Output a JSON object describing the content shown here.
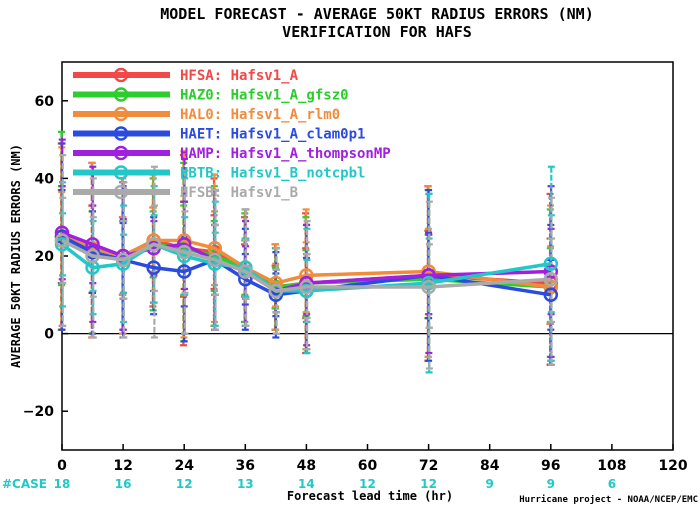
{
  "chart_data": {
    "type": "line",
    "title": "MODEL FORECAST - AVERAGE 50KT RADIUS ERRORS (NM)",
    "subtitle": "VERIFICATION FOR HAFS",
    "xlabel": "Forecast lead time (hr)",
    "ylabel": "AVERAGE 50KT RADIUS ERRORS (NM)",
    "xlim": [
      0,
      120
    ],
    "ylim": [
      -30,
      70
    ],
    "x_ticks": [
      0,
      12,
      24,
      36,
      48,
      60,
      72,
      84,
      96,
      108,
      120
    ],
    "y_ticks": [
      -20,
      0,
      20,
      40,
      60
    ],
    "legend_position": "top-left",
    "case_label": "#CASE",
    "case_counts": [
      {
        "x": 0,
        "n": "18"
      },
      {
        "x": 12,
        "n": "16"
      },
      {
        "x": 24,
        "n": "12"
      },
      {
        "x": 36,
        "n": "13"
      },
      {
        "x": 48,
        "n": "14"
      },
      {
        "x": 60,
        "n": "12"
      },
      {
        "x": 72,
        "n": "12"
      },
      {
        "x": 84,
        "n": "9"
      },
      {
        "x": 96,
        "n": "9"
      },
      {
        "x": 108,
        "n": "6"
      }
    ],
    "credit": "Hurricane project - NOAA/NCEP/EMC",
    "x": [
      0,
      6,
      12,
      18,
      24,
      30,
      36,
      42,
      48,
      72,
      96
    ],
    "series": [
      {
        "name": "HFSA:  Hafsv1_A",
        "color": "#f24848",
        "values": [
          25,
          22,
          20,
          24,
          22,
          21,
          16,
          12,
          13,
          15,
          13
        ],
        "err_low": [
          1,
          -1,
          0,
          7,
          -3,
          2,
          3,
          1,
          -5,
          -7,
          -8
        ],
        "err_high": [
          49,
          44,
          40,
          41,
          46,
          40,
          30,
          23,
          31,
          38,
          36
        ]
      },
      {
        "name": "HAZ0:  Hafsv1_A_gfsz0",
        "color": "#2ccd2c",
        "values": [
          24,
          21,
          19,
          23,
          22,
          20,
          17,
          12,
          13,
          14,
          12
        ],
        "err_low": [
          1,
          0,
          1,
          6,
          -2,
          2,
          3,
          1,
          -4,
          -6,
          -6
        ],
        "err_high": [
          52,
          42,
          39,
          40,
          44,
          38,
          31,
          22,
          30,
          37,
          32
        ]
      },
      {
        "name": "HAL0:  Hafsv1_A_rlm0",
        "color": "#f08c3c",
        "values": [
          25,
          22,
          20,
          24,
          24,
          22,
          17,
          13,
          15,
          16,
          12
        ],
        "err_low": [
          1,
          -1,
          0,
          8,
          -1,
          3,
          2,
          1,
          -4,
          -6,
          -7
        ],
        "err_high": [
          48,
          44,
          40,
          41,
          47,
          41,
          32,
          23,
          32,
          38,
          33
        ]
      },
      {
        "name": "HAET:  Hafsv1_A_clam0p1",
        "color": "#2b4be0",
        "values": [
          25,
          21,
          19,
          17,
          16,
          19,
          14,
          10,
          11,
          15,
          10
        ],
        "err_low": [
          1,
          0,
          -1,
          5,
          -2,
          1,
          1,
          -1,
          -5,
          -7,
          -8
        ],
        "err_high": [
          49,
          42,
          38,
          30,
          34,
          37,
          27,
          21,
          28,
          37,
          28
        ]
      },
      {
        "name": "HAMP:  Hafsv1_A_thompsonMP",
        "color": "#a020e0",
        "values": [
          26,
          23,
          20,
          22,
          23,
          19,
          16,
          11,
          13,
          15,
          16
        ],
        "err_low": [
          2,
          3,
          1,
          8,
          0,
          1,
          2,
          0,
          -3,
          -5,
          -6
        ],
        "err_high": [
          50,
          43,
          39,
          36,
          45,
          37,
          29,
          22,
          28,
          36,
          38
        ]
      },
      {
        "name": "HBTB:  Hafsv1_B_notcpbl",
        "color": "#22c8c8",
        "values": [
          23,
          17,
          18,
          23,
          20,
          18,
          17,
          11,
          11,
          13,
          18
        ],
        "err_low": [
          7,
          5,
          3,
          8,
          0,
          2,
          2,
          0,
          -5,
          -10,
          -7
        ],
        "err_high": [
          39,
          29,
          33,
          38,
          40,
          34,
          32,
          22,
          27,
          36,
          43
        ]
      },
      {
        "name": "HFSB:  Hafsv1_B",
        "color": "#aaaaaa",
        "values": [
          24,
          20,
          19,
          23,
          21,
          19,
          16,
          11,
          12,
          12,
          14
        ],
        "err_low": [
          2,
          -1,
          -1,
          -1,
          0,
          1,
          2,
          0,
          -4,
          -9,
          -8
        ],
        "err_high": [
          46,
          40,
          39,
          43,
          42,
          37,
          32,
          22,
          29,
          34,
          35
        ]
      }
    ]
  }
}
